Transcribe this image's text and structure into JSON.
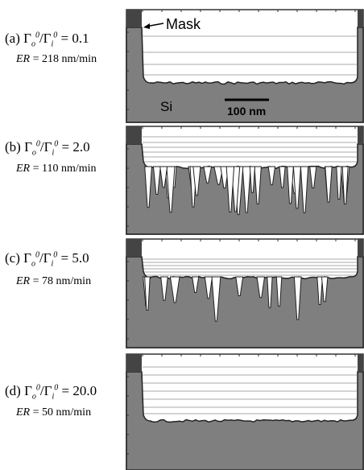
{
  "ratio": {
    "g1": "Γ",
    "s1": "o",
    "p1": "0",
    "g2": "/Γ",
    "s2": "i",
    "p2": "0",
    "eq": "="
  },
  "er_symbol": "ER",
  "panels": [
    {
      "letter": "(a)",
      "value": "0.1",
      "er": "= 218 nm/min"
    },
    {
      "letter": "(b)",
      "value": "2.0",
      "er": "= 110 nm/min"
    },
    {
      "letter": "(c)",
      "value": "5.0",
      "er": "= 78 nm/min"
    },
    {
      "letter": "(d)",
      "value": "20.0",
      "er": "= 50 nm/min"
    }
  ],
  "annotations": {
    "mask": "Mask",
    "si": "Si",
    "scale": "100 nm"
  }
}
